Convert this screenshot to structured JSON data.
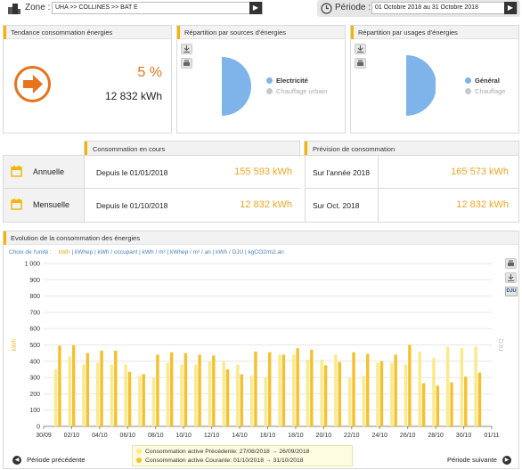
{
  "topbar": {
    "zone_label": "Zone :",
    "zone_value": "UHA >> COLLINES >> BAT E",
    "periode_label": "Période :",
    "periode_value": "01 Octobre 2018 au 31 Octobre 2018"
  },
  "tendance": {
    "title": "Tendance consommation énergies",
    "percent": "5 %",
    "kwh": "12 832 kWh"
  },
  "sources": {
    "title": "Répartition par sources d'énergies",
    "legend": [
      {
        "label": "Electricité",
        "color": "#7eb4ea",
        "active": true
      },
      {
        "label": "Chauffage urbain",
        "color": "#c8c8c8",
        "active": false
      }
    ]
  },
  "usages": {
    "title": "Répartition par usages d'énergies",
    "legend": [
      {
        "label": "Général",
        "color": "#7eb4ea",
        "active": true
      },
      {
        "label": "Chauffage",
        "color": "#c8c8c8",
        "active": false
      }
    ]
  },
  "consommation": {
    "title": "Consommation en cours",
    "rows": [
      {
        "label": "Annuelle",
        "since": "Depuis le 01/01/2018",
        "value": "155 593 kWh"
      },
      {
        "label": "Mensuelle",
        "since": "Depuis le 01/10/2018",
        "value": "12 832 kWh"
      }
    ]
  },
  "prevision": {
    "title": "Prévision de consommation",
    "rows": [
      {
        "label": "Sur l'année 2018",
        "value": "165 573 kWh"
      },
      {
        "label": "Sur Oct. 2018",
        "value": "12 832 kWh"
      }
    ]
  },
  "evolution": {
    "title": "Evolution de la consommation des énergies",
    "unit_choice_label": "Choix de l'unité :",
    "units": [
      "kWh",
      "kWhep",
      "kWh / occupant",
      "kWh / m²",
      "kWhep / m² / an",
      "kWh / DJU",
      "kgCO2/m2.an"
    ],
    "dju_button": "DJU",
    "prev_button": "Période précédente",
    "next_button": "Période suivante",
    "legend": [
      {
        "label": "Consommation active Précédente: 27/08/2018 → 26/09/2018",
        "color": "#fbe98a"
      },
      {
        "label": "Consommation active Courante: 01/10/2018 → 31/10/2018",
        "color": "#f5c02c"
      }
    ]
  },
  "chart_data": {
    "type": "bar",
    "ylabel": "kWh",
    "y2label": "DJU",
    "ylim": [
      0,
      1000
    ],
    "yticks": [
      "0",
      "100",
      "200",
      "300",
      "400",
      "500",
      "600",
      "700",
      "800",
      "900",
      "1 000"
    ],
    "xticks": [
      "30/09",
      "02/10",
      "04/10",
      "06/10",
      "08/10",
      "10/10",
      "12/10",
      "14/10",
      "16/10",
      "18/10",
      "20/10",
      "22/10",
      "24/10",
      "26/10",
      "28/10",
      "30/10",
      "01/11"
    ],
    "categories": [
      "01/10",
      "02/10",
      "03/10",
      "04/10",
      "05/10",
      "06/10",
      "07/10",
      "08/10",
      "09/10",
      "10/10",
      "11/10",
      "12/10",
      "13/10",
      "14/10",
      "15/10",
      "16/10",
      "17/10",
      "18/10",
      "19/10",
      "20/10",
      "21/10",
      "22/10",
      "23/10",
      "24/10",
      "25/10",
      "26/10",
      "27/10",
      "28/10",
      "29/10",
      "30/10",
      "31/10"
    ],
    "series": [
      {
        "name": "Consommation active Précédente: 27/08/2018 → 26/09/2018",
        "color": "#fbe98a",
        "values": [
          350,
          430,
          380,
          390,
          380,
          380,
          310,
          300,
          390,
          380,
          380,
          400,
          400,
          380,
          310,
          300,
          440,
          440,
          410,
          410,
          440,
          300,
          310,
          390,
          390,
          380,
          460,
          420,
          490,
          480,
          490
        ]
      },
      {
        "name": "Consommation active Courante: 01/10/2018 → 31/10/2018",
        "color": "#f5c02c",
        "values": [
          495,
          498,
          450,
          465,
          465,
          335,
          320,
          440,
          455,
          450,
          440,
          435,
          350,
          320,
          460,
          455,
          440,
          480,
          470,
          375,
          395,
          455,
          445,
          400,
          440,
          500,
          265,
          250,
          270,
          305,
          330
        ]
      }
    ]
  }
}
